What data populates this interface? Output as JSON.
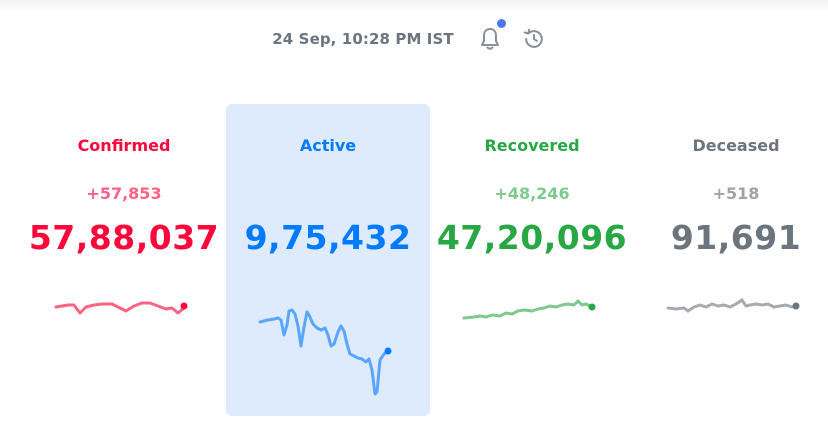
{
  "header": {
    "timestamp": "24 Sep, 10:28 PM IST",
    "notification_icon": "bell-icon",
    "history_icon": "history-icon",
    "notify_dot_color": "#4c75f2"
  },
  "cards": [
    {
      "key": "confirmed",
      "label": "Confirmed",
      "delta": "+57,853",
      "total": "57,88,037",
      "color": "#ff073a",
      "delta_color": "#ff6384"
    },
    {
      "key": "active",
      "label": "Active",
      "delta": "",
      "total": "9,75,432",
      "color": "#007bff",
      "background": "#deebfd"
    },
    {
      "key": "recovered",
      "label": "Recovered",
      "delta": "+48,246",
      "total": "47,20,096",
      "color": "#28a745",
      "delta_color": "#7dca8c"
    },
    {
      "key": "deceased",
      "label": "Deceased",
      "delta": "+518",
      "total": "91,691",
      "color": "#6c757d",
      "delta_color": "#9ca3ab"
    }
  ]
}
